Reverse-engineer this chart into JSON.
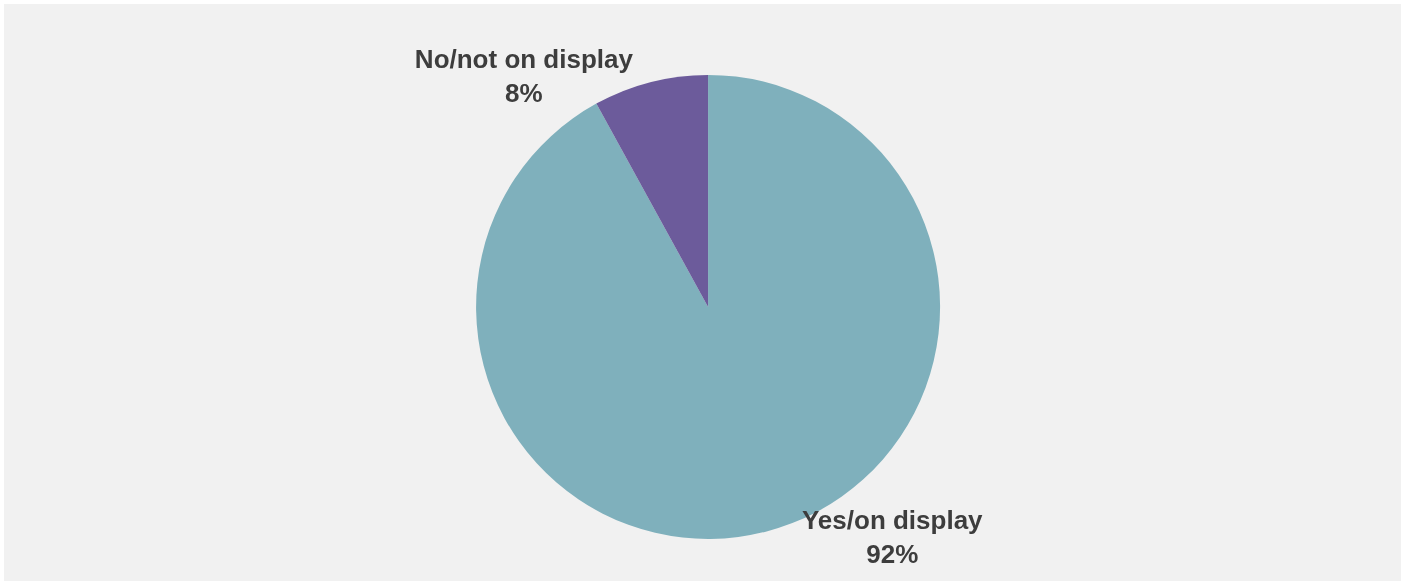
{
  "chart_data": {
    "type": "pie",
    "categories": [
      "Yes/on display",
      "No/not on display"
    ],
    "values": [
      92,
      8
    ],
    "value_labels": [
      "92%",
      "8%"
    ],
    "colors": [
      "#7fb0bc",
      "#6c5b9b"
    ],
    "legend": false
  }
}
